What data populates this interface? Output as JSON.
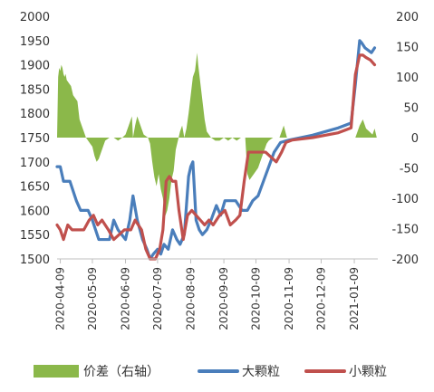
{
  "chart_data": {
    "type": "line",
    "title": "",
    "x_tick_labels": [
      "2020-04-09",
      "2020-05-09",
      "2020-06-09",
      "2020-07-09",
      "2020-08-09",
      "2020-09-09",
      "2020-10-09",
      "2020-11-09",
      "2020-12-09",
      "2021-01-09"
    ],
    "x_ticks": [
      "2020-04-09",
      "2020-05-09",
      "2020-06-09",
      "2020-07-09",
      "2020-08-09",
      "2020-09-09",
      "2020-10-09",
      "2020-11-09",
      "2020-12-09",
      "2021-01-09"
    ],
    "x_range": [
      "2020-04-06",
      "2021-01-31"
    ],
    "y_left": {
      "min": 1500,
      "max": 2000,
      "ticks": [
        1500,
        1550,
        1600,
        1650,
        1700,
        1750,
        1800,
        1850,
        1900,
        1950,
        2000
      ]
    },
    "y_right": {
      "min": -200,
      "max": 200,
      "ticks": [
        -200,
        -150,
        -100,
        -50,
        0,
        50,
        100,
        150,
        200
      ]
    },
    "grid": false,
    "legend_position": "bottom",
    "series": [
      {
        "name": "价差（右轴）",
        "kind": "area",
        "axis": "right",
        "color": "#8bb84a",
        "points": [
          [
            "2020-04-06",
            0
          ],
          [
            "2020-04-07",
            100
          ],
          [
            "2020-04-08",
            115
          ],
          [
            "2020-04-09",
            110
          ],
          [
            "2020-04-10",
            120
          ],
          [
            "2020-04-11",
            115
          ],
          [
            "2020-04-12",
            105
          ],
          [
            "2020-04-13",
            100
          ],
          [
            "2020-04-14",
            105
          ],
          [
            "2020-04-15",
            95
          ],
          [
            "2020-04-17",
            90
          ],
          [
            "2020-04-19",
            85
          ],
          [
            "2020-04-21",
            70
          ],
          [
            "2020-04-23",
            65
          ],
          [
            "2020-04-25",
            60
          ],
          [
            "2020-04-27",
            30
          ],
          [
            "2020-04-29",
            20
          ],
          [
            "2020-05-01",
            10
          ],
          [
            "2020-05-03",
            0
          ],
          [
            "2020-05-05",
            -5
          ],
          [
            "2020-05-07",
            -10
          ],
          [
            "2020-05-09",
            -15
          ],
          [
            "2020-05-11",
            -30
          ],
          [
            "2020-05-13",
            -40
          ],
          [
            "2020-05-15",
            -35
          ],
          [
            "2020-05-17",
            -25
          ],
          [
            "2020-05-19",
            -15
          ],
          [
            "2020-05-21",
            -5
          ],
          [
            "2020-05-25",
            0
          ],
          [
            "2020-05-29",
            0
          ],
          [
            "2020-06-02",
            -5
          ],
          [
            "2020-06-06",
            0
          ],
          [
            "2020-06-09",
            5
          ],
          [
            "2020-06-12",
            20
          ],
          [
            "2020-06-14",
            30
          ],
          [
            "2020-06-15",
            35
          ],
          [
            "2020-06-16",
            0
          ],
          [
            "2020-06-18",
            20
          ],
          [
            "2020-06-20",
            35
          ],
          [
            "2020-06-22",
            25
          ],
          [
            "2020-06-24",
            15
          ],
          [
            "2020-06-26",
            5
          ],
          [
            "2020-06-30",
            0
          ],
          [
            "2020-07-02",
            -10
          ],
          [
            "2020-07-04",
            -40
          ],
          [
            "2020-07-06",
            -65
          ],
          [
            "2020-07-08",
            -80
          ],
          [
            "2020-07-10",
            -60
          ],
          [
            "2020-07-12",
            -85
          ],
          [
            "2020-07-14",
            -100
          ],
          [
            "2020-07-16",
            -130
          ],
          [
            "2020-07-18",
            -120
          ],
          [
            "2020-07-20",
            -100
          ],
          [
            "2020-07-22",
            -70
          ],
          [
            "2020-07-24",
            -55
          ],
          [
            "2020-07-26",
            -20
          ],
          [
            "2020-07-28",
            -5
          ],
          [
            "2020-07-30",
            10
          ],
          [
            "2020-08-01",
            20
          ],
          [
            "2020-08-03",
            0
          ],
          [
            "2020-08-05",
            15
          ],
          [
            "2020-08-07",
            40
          ],
          [
            "2020-08-09",
            70
          ],
          [
            "2020-08-11",
            100
          ],
          [
            "2020-08-13",
            110
          ],
          [
            "2020-08-15",
            140
          ],
          [
            "2020-08-16",
            120
          ],
          [
            "2020-08-18",
            90
          ],
          [
            "2020-08-20",
            60
          ],
          [
            "2020-08-22",
            30
          ],
          [
            "2020-08-24",
            10
          ],
          [
            "2020-08-26",
            5
          ],
          [
            "2020-08-28",
            0
          ],
          [
            "2020-09-01",
            -5
          ],
          [
            "2020-09-05",
            -5
          ],
          [
            "2020-09-09",
            0
          ],
          [
            "2020-09-13",
            -5
          ],
          [
            "2020-09-17",
            0
          ],
          [
            "2020-09-21",
            -5
          ],
          [
            "2020-09-25",
            0
          ],
          [
            "2020-09-29",
            0
          ],
          [
            "2020-10-01",
            -60
          ],
          [
            "2020-10-03",
            -70
          ],
          [
            "2020-10-05",
            -65
          ],
          [
            "2020-10-07",
            -60
          ],
          [
            "2020-10-09",
            -55
          ],
          [
            "2020-10-11",
            -50
          ],
          [
            "2020-10-13",
            -40
          ],
          [
            "2020-10-15",
            -30
          ],
          [
            "2020-10-17",
            -20
          ],
          [
            "2020-10-19",
            -10
          ],
          [
            "2020-10-21",
            -5
          ],
          [
            "2020-10-25",
            0
          ],
          [
            "2020-10-31",
            0
          ],
          [
            "2020-11-04",
            20
          ],
          [
            "2020-11-07",
            0
          ],
          [
            "2020-11-15",
            0
          ],
          [
            "2020-12-01",
            0
          ],
          [
            "2020-12-15",
            0
          ],
          [
            "2021-01-01",
            0
          ],
          [
            "2021-01-06",
            0
          ],
          [
            "2021-01-10",
            0
          ],
          [
            "2021-01-14",
            20
          ],
          [
            "2021-01-17",
            30
          ],
          [
            "2021-01-20",
            15
          ],
          [
            "2021-01-23",
            10
          ],
          [
            "2021-01-26",
            5
          ],
          [
            "2021-01-28",
            15
          ],
          [
            "2021-01-30",
            0
          ]
        ]
      },
      {
        "name": "大颗粒",
        "kind": "line",
        "axis": "left",
        "color": "#4a7ebb",
        "points": [
          [
            "2020-04-06",
            1690
          ],
          [
            "2020-04-09",
            1690
          ],
          [
            "2020-04-12",
            1660
          ],
          [
            "2020-04-18",
            1660
          ],
          [
            "2020-04-24",
            1620
          ],
          [
            "2020-04-28",
            1600
          ],
          [
            "2020-05-05",
            1600
          ],
          [
            "2020-05-09",
            1580
          ],
          [
            "2020-05-12",
            1560
          ],
          [
            "2020-05-15",
            1540
          ],
          [
            "2020-05-25",
            1540
          ],
          [
            "2020-05-29",
            1580
          ],
          [
            "2020-06-02",
            1560
          ],
          [
            "2020-06-09",
            1540
          ],
          [
            "2020-06-13",
            1580
          ],
          [
            "2020-06-16",
            1630
          ],
          [
            "2020-06-20",
            1580
          ],
          [
            "2020-06-25",
            1540
          ],
          [
            "2020-06-29",
            1520
          ],
          [
            "2020-07-02",
            1500
          ],
          [
            "2020-07-05",
            1510
          ],
          [
            "2020-07-09",
            1520
          ],
          [
            "2020-07-12",
            1510
          ],
          [
            "2020-07-15",
            1530
          ],
          [
            "2020-07-19",
            1520
          ],
          [
            "2020-07-23",
            1560
          ],
          [
            "2020-07-27",
            1540
          ],
          [
            "2020-07-30",
            1530
          ],
          [
            "2020-08-03",
            1550
          ],
          [
            "2020-08-07",
            1670
          ],
          [
            "2020-08-09",
            1690
          ],
          [
            "2020-08-11",
            1700
          ],
          [
            "2020-08-14",
            1580
          ],
          [
            "2020-08-17",
            1560
          ],
          [
            "2020-08-20",
            1550
          ],
          [
            "2020-08-24",
            1560
          ],
          [
            "2020-08-28",
            1580
          ],
          [
            "2020-09-02",
            1610
          ],
          [
            "2020-09-06",
            1590
          ],
          [
            "2020-09-10",
            1620
          ],
          [
            "2020-09-15",
            1620
          ],
          [
            "2020-09-20",
            1620
          ],
          [
            "2020-09-26",
            1600
          ],
          [
            "2020-10-01",
            1600
          ],
          [
            "2020-10-06",
            1620
          ],
          [
            "2020-10-11",
            1630
          ],
          [
            "2020-10-16",
            1660
          ],
          [
            "2020-10-21",
            1690
          ],
          [
            "2020-10-26",
            1720
          ],
          [
            "2020-11-01",
            1740
          ],
          [
            "2020-11-09",
            1745
          ],
          [
            "2020-12-01",
            1755
          ],
          [
            "2020-12-25",
            1770
          ],
          [
            "2021-01-06",
            1780
          ],
          [
            "2021-01-10",
            1860
          ],
          [
            "2021-01-14",
            1950
          ],
          [
            "2021-01-16",
            1945
          ],
          [
            "2021-01-19",
            1935
          ],
          [
            "2021-01-22",
            1930
          ],
          [
            "2021-01-25",
            1925
          ],
          [
            "2021-01-28",
            1935
          ]
        ]
      },
      {
        "name": "小颗粒",
        "kind": "line",
        "axis": "left",
        "color": "#c0504d",
        "points": [
          [
            "2020-04-06",
            1570
          ],
          [
            "2020-04-09",
            1560
          ],
          [
            "2020-04-12",
            1540
          ],
          [
            "2020-04-16",
            1570
          ],
          [
            "2020-04-20",
            1560
          ],
          [
            "2020-04-25",
            1560
          ],
          [
            "2020-05-01",
            1560
          ],
          [
            "2020-05-06",
            1580
          ],
          [
            "2020-05-10",
            1590
          ],
          [
            "2020-05-14",
            1570
          ],
          [
            "2020-05-18",
            1580
          ],
          [
            "2020-05-24",
            1560
          ],
          [
            "2020-05-29",
            1540
          ],
          [
            "2020-06-03",
            1550
          ],
          [
            "2020-06-08",
            1560
          ],
          [
            "2020-06-14",
            1560
          ],
          [
            "2020-06-18",
            1580
          ],
          [
            "2020-06-24",
            1560
          ],
          [
            "2020-06-28",
            1520
          ],
          [
            "2020-07-02",
            1500
          ],
          [
            "2020-07-07",
            1500
          ],
          [
            "2020-07-11",
            1520
          ],
          [
            "2020-07-14",
            1560
          ],
          [
            "2020-07-17",
            1660
          ],
          [
            "2020-07-20",
            1670
          ],
          [
            "2020-07-23",
            1660
          ],
          [
            "2020-07-26",
            1660
          ],
          [
            "2020-07-29",
            1600
          ],
          [
            "2020-08-02",
            1540
          ],
          [
            "2020-08-06",
            1590
          ],
          [
            "2020-08-10",
            1600
          ],
          [
            "2020-08-14",
            1590
          ],
          [
            "2020-08-18",
            1580
          ],
          [
            "2020-08-22",
            1570
          ],
          [
            "2020-08-26",
            1580
          ],
          [
            "2020-08-30",
            1570
          ],
          [
            "2020-09-05",
            1590
          ],
          [
            "2020-09-10",
            1600
          ],
          [
            "2020-09-15",
            1570
          ],
          [
            "2020-09-20",
            1580
          ],
          [
            "2020-09-24",
            1590
          ],
          [
            "2020-09-28",
            1660
          ],
          [
            "2020-10-02",
            1720
          ],
          [
            "2020-10-08",
            1720
          ],
          [
            "2020-10-13",
            1720
          ],
          [
            "2020-10-18",
            1720
          ],
          [
            "2020-10-23",
            1710
          ],
          [
            "2020-10-28",
            1700
          ],
          [
            "2020-11-02",
            1720
          ],
          [
            "2020-11-06",
            1740
          ],
          [
            "2020-11-12",
            1745
          ],
          [
            "2020-12-01",
            1750
          ],
          [
            "2020-12-25",
            1760
          ],
          [
            "2021-01-06",
            1770
          ],
          [
            "2021-01-10",
            1880
          ],
          [
            "2021-01-14",
            1920
          ],
          [
            "2021-01-17",
            1920
          ],
          [
            "2021-01-20",
            1915
          ],
          [
            "2021-01-24",
            1910
          ],
          [
            "2021-01-28",
            1900
          ]
        ]
      }
    ]
  }
}
